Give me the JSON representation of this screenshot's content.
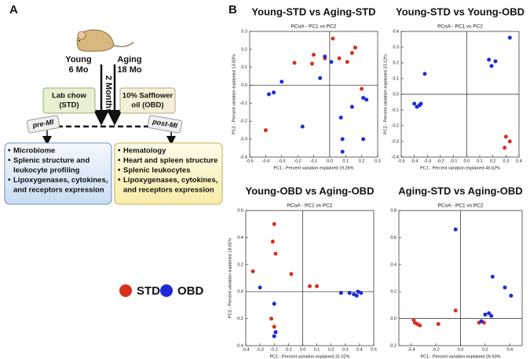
{
  "panel_a_label": "A",
  "panel_b_label": "B",
  "diagram": {
    "young": "Young",
    "young_age": "6 Mo",
    "aging": "Aging",
    "aging_age": "18 Mo",
    "duration": "2 Months",
    "left_diet": [
      "Lab chow",
      "(STD)"
    ],
    "right_diet": [
      "10% Safflower",
      "oil (OBD)"
    ],
    "pre": "pre-MI",
    "post": "post-MI",
    "left_items": [
      [
        "Microbiome"
      ],
      [
        "Splenic structure and",
        "leukocyte profiling"
      ],
      [
        "Lipoxygenases, cytokines,",
        "and receptors expression"
      ]
    ],
    "right_items": [
      [
        "Hematology"
      ],
      [
        "Heart and spleen structure"
      ],
      [
        "Splenic leukocytes"
      ],
      [
        "Lipoxygenases, cytokines,",
        "and receptors expression"
      ]
    ]
  },
  "legend": [
    {
      "name": "STD",
      "color": "#d7301f"
    },
    {
      "name": "OBD",
      "color": "#1f2bd7"
    }
  ],
  "chart_data": [
    {
      "type": "scatter",
      "title": "Young-STD vs Aging-STD",
      "subtitle": "PCoA - PC1 vs PC2",
      "x_label": "PC1 - Percent variation explained 19.26%",
      "y_label": "PC2 - Percent variation explained 13.82%",
      "xlim": [
        -0.5,
        0.3
      ],
      "ylim": [
        -0.4,
        0.3
      ],
      "xticks": [
        -0.5,
        -0.4,
        -0.3,
        -0.2,
        -0.1,
        {
          "value": 0,
          "label": "0.0"
        },
        0.1,
        0.2,
        0.3
      ],
      "yticks": [
        -0.4,
        -0.3,
        -0.2,
        -0.1,
        {
          "value": 0,
          "label": "0.0"
        },
        0.1,
        0.2,
        0.3
      ],
      "series": [
        {
          "color": "#d7301f",
          "x": [
            -0.4,
            -0.22,
            -0.11,
            -0.1,
            -0.03,
            0.02,
            0.06,
            0.11,
            0.14,
            0.16,
            0.2
          ],
          "values": [
            -0.25,
            0.125,
            0.12,
            0.17,
            0.15,
            0.26,
            0.15,
            0.13,
            0.18,
            0.21,
            -0.02
          ]
        },
        {
          "color": "#1f2bd7",
          "x": [
            -0.38,
            -0.35,
            -0.3,
            -0.17,
            -0.06,
            -0.03,
            0.01,
            0.14,
            0.21,
            0.23,
            0.21,
            0.07,
            0.08,
            0.08
          ],
          "values": [
            -0.05,
            -0.04,
            0.02,
            -0.23,
            0.04,
            0.16,
            0.13,
            -0.12,
            -0.07,
            -0.08,
            -0.3,
            -0.18,
            -0.3,
            -0.37
          ]
        }
      ]
    },
    {
      "type": "scatter",
      "title": "Young-STD vs Young-OBD",
      "subtitle": "PCoA - PC1 vs PC2",
      "x_label": "PC1 - Percent variation explained 46.62%",
      "y_label": "PC2 - Percent variation explained 23.12%",
      "xlim": [
        -0.5,
        0.4
      ],
      "ylim": [
        -0.4,
        0.4
      ],
      "xticks": [
        -0.5,
        -0.4,
        -0.3,
        -0.2,
        -0.1,
        {
          "value": 0,
          "label": "0.0"
        },
        0.1,
        0.2,
        0.3,
        0.4
      ],
      "yticks": [
        -0.4,
        -0.3,
        -0.2,
        -0.1,
        {
          "value": 0,
          "label": "0.0"
        },
        0.1,
        0.2,
        0.3,
        0.4
      ],
      "series": [
        {
          "color": "#d7301f",
          "x": [
            0.3,
            0.33,
            0.29
          ],
          "values": [
            -0.27,
            -0.3,
            -0.34
          ]
        },
        {
          "color": "#1f2bd7",
          "x": [
            -0.4,
            -0.38,
            -0.36,
            -0.35,
            -0.32,
            0.17,
            0.19,
            0.22,
            0.33
          ],
          "values": [
            -0.06,
            -0.08,
            -0.07,
            -0.06,
            0.13,
            0.22,
            0.18,
            0.21,
            0.36
          ]
        }
      ]
    },
    {
      "type": "scatter",
      "title": "Young-OBD vs Aging-OBD",
      "subtitle": "PCoA - PC1 vs PC2",
      "x_label": "PC1 - Percent variation explained 31.02%",
      "y_label": "PC2 - Percent variation explained 18.81%",
      "xlim": [
        -0.4,
        0.5
      ],
      "ylim": [
        -0.4,
        0.6
      ],
      "xticks": [
        -0.4,
        -0.3,
        -0.2,
        -0.1,
        {
          "value": 0,
          "label": "0.0"
        },
        0.1,
        0.2,
        0.3,
        0.4,
        0.5
      ],
      "yticks": [
        -0.4,
        -0.2,
        {
          "value": 0,
          "label": "0.0"
        },
        0.2,
        0.4,
        0.6
      ],
      "series": [
        {
          "color": "#d7301f",
          "x": [
            -0.2,
            -0.21,
            -0.19,
            -0.35,
            -0.08,
            0.05,
            0.1,
            -0.22,
            -0.2
          ],
          "values": [
            0.5,
            0.37,
            0.28,
            0.15,
            0.13,
            0.04,
            0.04,
            -0.2,
            -0.26
          ]
        },
        {
          "color": "#1f2bd7",
          "x": [
            -0.3,
            -0.2,
            -0.19,
            -0.2,
            0.27,
            0.33,
            0.36,
            0.39,
            0.41,
            0.38
          ],
          "values": [
            0.03,
            -0.09,
            -0.3,
            -0.33,
            -0.01,
            -0.01,
            -0.02,
            0.0,
            -0.01,
            -0.03
          ]
        }
      ]
    },
    {
      "type": "scatter",
      "title": "Aging-STD vs Aging-OBD",
      "subtitle": "PCoA - PC1 vs PC2",
      "x_label": "PC1 - Percent variation explained 26.93%",
      "xlim": [
        -0.5,
        0.5
      ],
      "ylim": [
        -0.2,
        0.8
      ],
      "xticks": [
        -0.4,
        -0.2,
        {
          "value": 0,
          "label": "0.0"
        },
        0.2,
        0.4
      ],
      "yticks": [
        -0.2,
        {
          "value": 0,
          "label": "0.0"
        },
        0.2,
        0.4,
        0.6,
        0.8
      ],
      "series": [
        {
          "color": "#d7301f",
          "x": [
            -0.38,
            -0.37,
            -0.35,
            -0.33,
            -0.18,
            -0.04,
            0.15,
            0.19
          ],
          "values": [
            -0.01,
            -0.03,
            -0.04,
            -0.05,
            -0.04,
            0.06,
            -0.03,
            -0.03
          ]
        },
        {
          "color": "#1f2bd7",
          "x": [
            -0.04,
            0.26,
            0.36,
            0.41,
            0.23,
            0.2,
            0.25,
            0.17
          ],
          "values": [
            0.66,
            0.31,
            0.23,
            0.17,
            0.04,
            0.03,
            0.02,
            -0.02
          ]
        }
      ]
    }
  ]
}
